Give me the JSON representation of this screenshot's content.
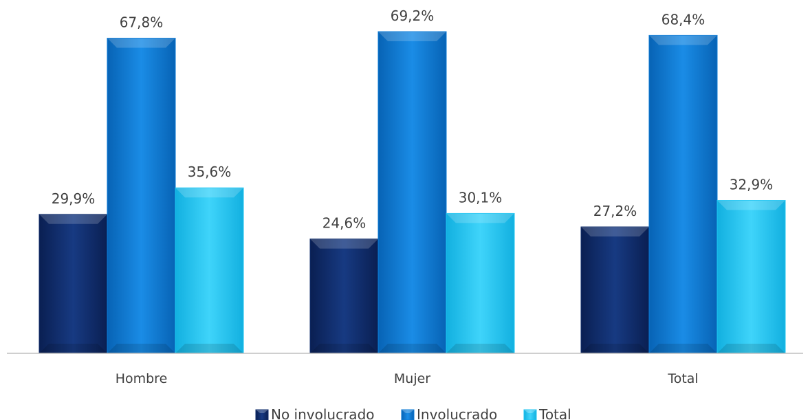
{
  "chart_data": {
    "type": "bar",
    "categories": [
      "Hombre",
      "Mujer",
      "Total"
    ],
    "series": [
      {
        "name": "No involucrado",
        "values": [
          29.9,
          24.6,
          27.2
        ],
        "labels": [
          "29,9%",
          "24,6%",
          "27,2%"
        ]
      },
      {
        "name": "Involucrado",
        "values": [
          67.8,
          69.2,
          68.4
        ],
        "labels": [
          "67,8%",
          "69,2%",
          "68,4%"
        ]
      },
      {
        "name": "Total",
        "values": [
          35.6,
          30.1,
          32.9
        ],
        "labels": [
          "35,6%",
          "30,1%",
          "32,9%"
        ]
      }
    ],
    "ylim": [
      0,
      70
    ],
    "legend": "bottom",
    "grid": false,
    "colors": [
      "#0f2d6b",
      "#0a7ad6",
      "#1cc4f2"
    ]
  }
}
